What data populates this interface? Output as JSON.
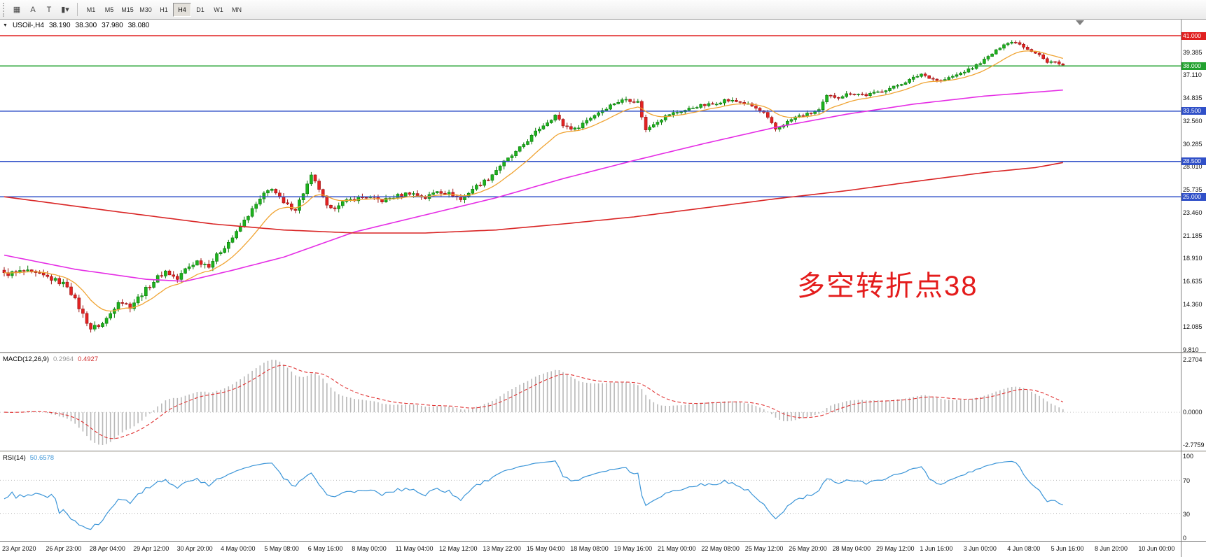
{
  "toolbar": {
    "icon_buttons": [
      {
        "name": "chart-window",
        "glyph": "▦"
      },
      {
        "name": "auto-scroll",
        "glyph": "A"
      },
      {
        "name": "text-tool",
        "glyph": "T"
      },
      {
        "name": "chart-type",
        "glyph": "▮",
        "caret": "▾"
      }
    ],
    "timeframes": [
      "M1",
      "M5",
      "M15",
      "M30",
      "H1",
      "H4",
      "D1",
      "W1",
      "MN"
    ],
    "active_timeframe": "H4"
  },
  "chart_data": {
    "type": "candlestick",
    "symbol_title": "USOil-,H4",
    "collapse_icon": "▼",
    "ohlc": {
      "open": "38.190",
      "high": "38.300",
      "low": "37.980",
      "close": "38.080"
    },
    "annotation": {
      "text": "多空转折点38",
      "color": "#e41c1c"
    },
    "up_color": "#1db21d",
    "down_color": "#e32222",
    "visible_range": {
      "top_price": 42.6,
      "bottom_price": 9.58
    },
    "candle_count": 270,
    "price_axis_ticks": [
      "39.385",
      "37.110",
      "34.835",
      "32.560",
      "30.285",
      "28.010",
      "25.735",
      "23.460",
      "21.185",
      "18.910",
      "16.635",
      "14.360",
      "12.085",
      "9.810"
    ],
    "hlines": [
      {
        "price": 41.0,
        "label": "41.000",
        "color": "#e02020"
      },
      {
        "price": 38.0,
        "label": "38.000",
        "color": "#22a12f"
      },
      {
        "price": 33.5,
        "label": "33.500",
        "color": "#3050c8"
      },
      {
        "price": 28.5,
        "label": "28.500",
        "color": "#3050c8"
      },
      {
        "price": 25.0,
        "label": "25.000",
        "color": "#3050c8"
      }
    ],
    "close_keypoints": [
      [
        0,
        17.3
      ],
      [
        5,
        17.6
      ],
      [
        11,
        17.0
      ],
      [
        16,
        16.2
      ],
      [
        19,
        14.0
      ],
      [
        22,
        11.9
      ],
      [
        25,
        12.4
      ],
      [
        27,
        13.4
      ],
      [
        29,
        14.7
      ],
      [
        32,
        14.1
      ],
      [
        36,
        15.8
      ],
      [
        39,
        17.0
      ],
      [
        41,
        17.6
      ],
      [
        44,
        16.8
      ],
      [
        46,
        17.8
      ],
      [
        49,
        18.6
      ],
      [
        52,
        18.2
      ],
      [
        55,
        19.6
      ],
      [
        59,
        21.4
      ],
      [
        62,
        23.2
      ],
      [
        66,
        25.2
      ],
      [
        68,
        25.9
      ],
      [
        71,
        24.3
      ],
      [
        74,
        23.8
      ],
      [
        77,
        26.2
      ],
      [
        78,
        27.0
      ],
      [
        80,
        25.8
      ],
      [
        82,
        24.0
      ],
      [
        83,
        23.7
      ],
      [
        85,
        24.3
      ],
      [
        89,
        24.8
      ],
      [
        92,
        25.0
      ],
      [
        96,
        24.6
      ],
      [
        100,
        25.1
      ],
      [
        103,
        25.4
      ],
      [
        107,
        24.9
      ],
      [
        110,
        25.6
      ],
      [
        114,
        25.2
      ],
      [
        116,
        24.7
      ],
      [
        119,
        25.8
      ],
      [
        123,
        26.8
      ],
      [
        126,
        28.1
      ],
      [
        130,
        29.4
      ],
      [
        132,
        30.2
      ],
      [
        136,
        31.8
      ],
      [
        140,
        33.1
      ],
      [
        142,
        32.1
      ],
      [
        145,
        31.7
      ],
      [
        148,
        32.6
      ],
      [
        151,
        33.4
      ],
      [
        155,
        34.3
      ],
      [
        158,
        34.7
      ],
      [
        161,
        34.4
      ],
      [
        163,
        31.6
      ],
      [
        165,
        32.3
      ],
      [
        169,
        33.2
      ],
      [
        173,
        33.6
      ],
      [
        176,
        34.0
      ],
      [
        180,
        34.2
      ],
      [
        183,
        34.6
      ],
      [
        187,
        34.4
      ],
      [
        190,
        34.0
      ],
      [
        193,
        33.3
      ],
      [
        196,
        31.7
      ],
      [
        198,
        32.2
      ],
      [
        201,
        32.9
      ],
      [
        205,
        33.3
      ],
      [
        207,
        33.6
      ],
      [
        209,
        35.0
      ],
      [
        212,
        34.9
      ],
      [
        215,
        35.3
      ],
      [
        219,
        35.1
      ],
      [
        222,
        35.4
      ],
      [
        226,
        35.9
      ],
      [
        230,
        36.6
      ],
      [
        233,
        37.2
      ],
      [
        236,
        36.7
      ],
      [
        238,
        36.5
      ],
      [
        242,
        37.1
      ],
      [
        246,
        37.8
      ],
      [
        249,
        38.6
      ],
      [
        252,
        39.5
      ],
      [
        254,
        40.2
      ],
      [
        257,
        40.4
      ],
      [
        260,
        39.7
      ],
      [
        263,
        39.1
      ],
      [
        265,
        38.3
      ],
      [
        267,
        38.5
      ],
      [
        268,
        38.19
      ],
      [
        269,
        38.08
      ]
    ],
    "ma_lines": [
      {
        "name": "fast-ma",
        "color": "#f0a433",
        "type": "ema",
        "period": 13
      },
      {
        "name": "medium-ma",
        "color": "#e52de5",
        "type": "keypoints",
        "points": [
          [
            0,
            19.2
          ],
          [
            18,
            17.8
          ],
          [
            36,
            16.8
          ],
          [
            46,
            16.6
          ],
          [
            57,
            17.6
          ],
          [
            71,
            19.0
          ],
          [
            89,
            21.5
          ],
          [
            107,
            23.2
          ],
          [
            125,
            24.9
          ],
          [
            142,
            26.8
          ],
          [
            160,
            28.6
          ],
          [
            178,
            30.3
          ],
          [
            196,
            31.9
          ],
          [
            214,
            33.2
          ],
          [
            231,
            34.2
          ],
          [
            249,
            35.0
          ],
          [
            269,
            35.6
          ]
        ]
      },
      {
        "name": "slow-ma",
        "color": "#d92525",
        "type": "keypoints",
        "points": [
          [
            0,
            25.0
          ],
          [
            27,
            23.6
          ],
          [
            53,
            22.3
          ],
          [
            71,
            21.7
          ],
          [
            89,
            21.4
          ],
          [
            107,
            21.4
          ],
          [
            125,
            21.7
          ],
          [
            142,
            22.3
          ],
          [
            160,
            23.0
          ],
          [
            178,
            23.9
          ],
          [
            196,
            24.8
          ],
          [
            214,
            25.6
          ],
          [
            231,
            26.5
          ],
          [
            249,
            27.4
          ],
          [
            262,
            27.9
          ],
          [
            269,
            28.4
          ]
        ]
      }
    ],
    "indicators": {
      "macd": {
        "label": "MACD(12,26,9)",
        "value_main": "0.2964",
        "value_signal": "0.4927",
        "fast": 12,
        "slow": 26,
        "signal": 9,
        "axis_labels": [
          "2.2704",
          "0.0000",
          "-2.7759"
        ],
        "histogram_color": "#b8b8b8",
        "signal_color": "#e03232"
      },
      "rsi": {
        "label": "RSI(14)",
        "value": "50.6578",
        "period": 14,
        "axis_labels": [
          "100",
          "70",
          "30",
          "0"
        ],
        "levels": [
          70,
          30
        ],
        "line_color": "#3b95d8"
      }
    },
    "time_axis_labels": [
      "23 Apr 2020",
      "26 Apr 23:00",
      "28 Apr 04:00",
      "29 Apr 12:00",
      "30 Apr 20:00",
      "4 May 00:00",
      "5 May 08:00",
      "6 May 16:00",
      "8 May 00:00",
      "11 May 04:00",
      "12 May 12:00",
      "13 May 22:00",
      "15 May 04:00",
      "18 May 08:00",
      "19 May 16:00",
      "21 May 00:00",
      "22 May 08:00",
      "25 May 12:00",
      "26 May 20:00",
      "28 May 04:00",
      "29 May 12:00",
      "1 Jun 16:00",
      "3 Jun 00:00",
      "4 Jun 08:00",
      "5 Jun 16:00",
      "8 Jun 20:00",
      "10 Jun 00:00"
    ]
  }
}
